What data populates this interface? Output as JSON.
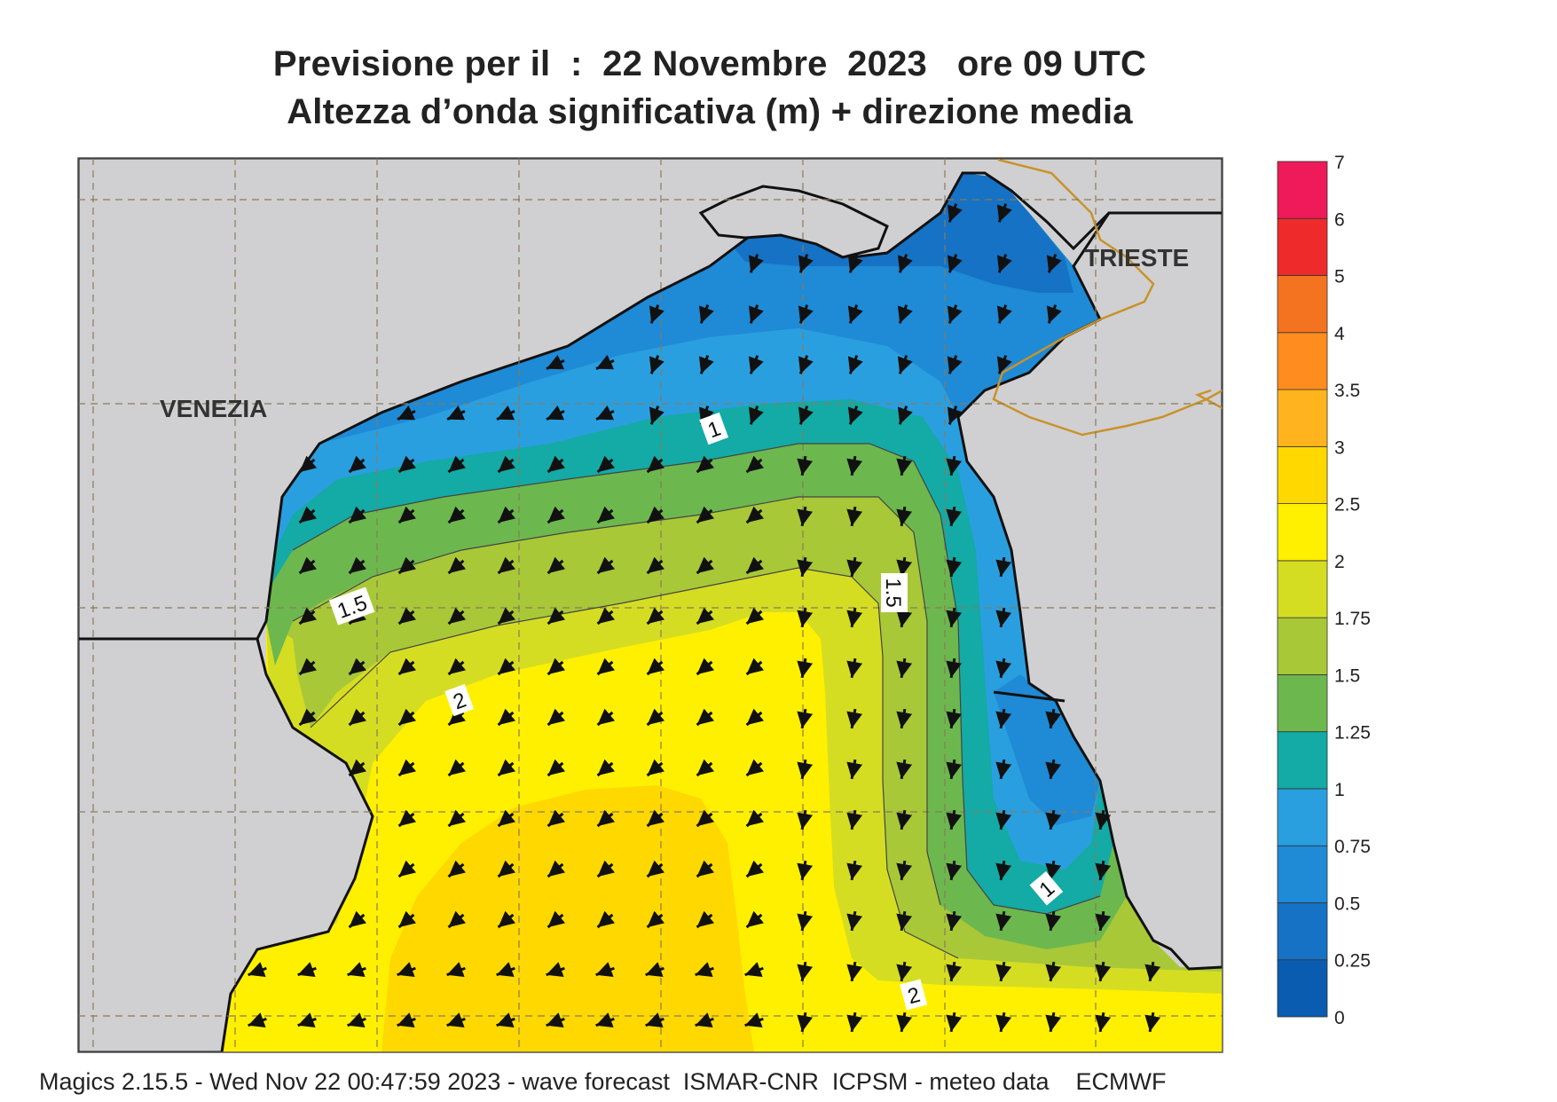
{
  "title": {
    "line1": "Previsione per il  :  22 Novembre  2023   ore 09 UTC",
    "line2": "Altezza d’onda significativa (m) + direzione media"
  },
  "places": {
    "venezia": "VENEZIA",
    "trieste": "TRIESTE"
  },
  "contour_labels": [
    "1",
    "1.5",
    "1.5",
    "2",
    "2",
    "1"
  ],
  "colorbar": {
    "levels": [
      "0",
      "0.25",
      "0.5",
      "0.75",
      "1",
      "1.25",
      "1.5",
      "1.75",
      "2",
      "2.5",
      "3",
      "3.5",
      "4",
      "5",
      "6",
      "7"
    ],
    "colors": [
      "#0a5cb0",
      "#1672c4",
      "#1f8ad6",
      "#2a9fe0",
      "#14aaa5",
      "#6cb84e",
      "#a8c838",
      "#d5dd22",
      "#fff000",
      "#ffd800",
      "#ffb41e",
      "#ff8c1e",
      "#f47320",
      "#ee2a2a",
      "#ee1a5a"
    ]
  },
  "footer": "Magics 2.15.5 - Wed Nov 22 00:47:59 2023 - wave forecast  ISMAR-CNR  ICPSM - meteo data    ECMWF",
  "colors": {
    "land": "#d0d0d2",
    "coast": "#111111",
    "border": "#c8922a",
    "grid": "#8a7a5a",
    "arrow": "#111111"
  }
}
